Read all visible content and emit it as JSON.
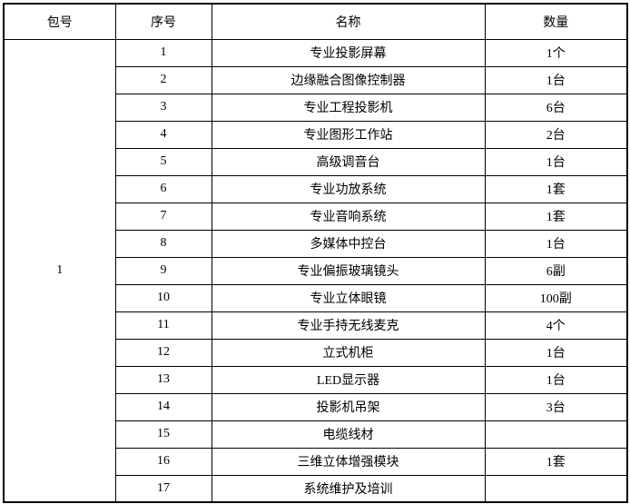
{
  "table": {
    "headers": {
      "package": "包号",
      "no": "序号",
      "name": "名称",
      "qty": "数量"
    },
    "package_no": "1",
    "rows": [
      {
        "no": "1",
        "name": "专业投影屏幕",
        "qty": "1个"
      },
      {
        "no": "2",
        "name": "边缘融合图像控制器",
        "qty": "1台"
      },
      {
        "no": "3",
        "name": "专业工程投影机",
        "qty": "6台"
      },
      {
        "no": "4",
        "name": "专业图形工作站",
        "qty": "2台"
      },
      {
        "no": "5",
        "name": "高级调音台",
        "qty": "1台"
      },
      {
        "no": "6",
        "name": "专业功放系统",
        "qty": "1套"
      },
      {
        "no": "7",
        "name": "专业音响系统",
        "qty": "1套"
      },
      {
        "no": "8",
        "name": "多媒体中控台",
        "qty": "1台"
      },
      {
        "no": "9",
        "name": "专业偏振玻璃镜头",
        "qty": "6副"
      },
      {
        "no": "10",
        "name": "专业立体眼镜",
        "qty": "100副"
      },
      {
        "no": "11",
        "name": "专业手持无线麦克",
        "qty": "4个"
      },
      {
        "no": "12",
        "name": "立式机柜",
        "qty": "1台"
      },
      {
        "no": "13",
        "name": "LED显示器",
        "qty": "1台"
      },
      {
        "no": "14",
        "name": "投影机吊架",
        "qty": "3台"
      },
      {
        "no": "15",
        "name": "电缆线材",
        "qty": ""
      },
      {
        "no": "16",
        "name": "三维立体增强模块",
        "qty": "1套"
      },
      {
        "no": "17",
        "name": "系统维护及培训",
        "qty": ""
      }
    ]
  }
}
